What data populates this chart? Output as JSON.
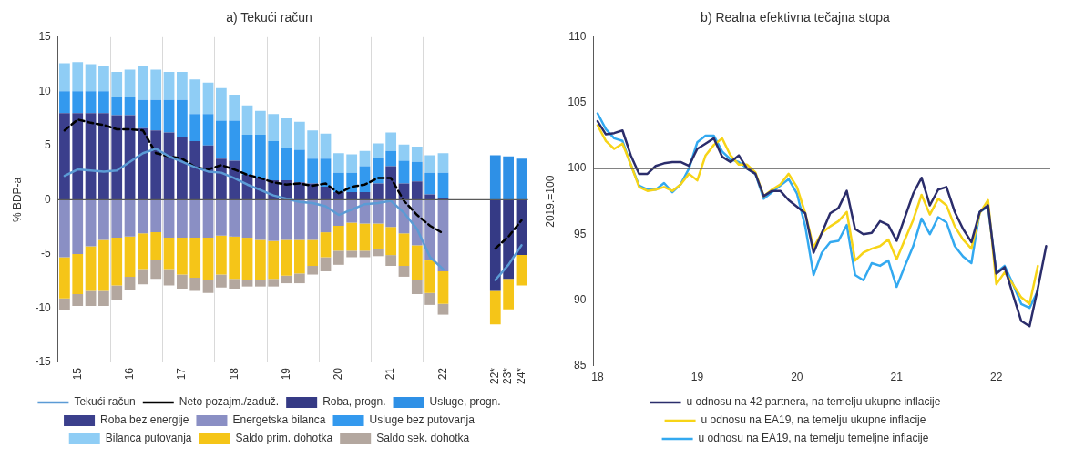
{
  "chart_data": [
    {
      "type": "bar",
      "stacked": true,
      "title": "a) Tekući račun",
      "ylabel": "% BDP-a",
      "categories": [
        null,
        "15",
        null,
        null,
        null,
        "16",
        null,
        null,
        null,
        "17",
        null,
        null,
        null,
        "18",
        null,
        null,
        null,
        "19",
        null,
        null,
        null,
        "20",
        null,
        null,
        null,
        "21",
        null,
        null,
        null,
        "22",
        null,
        null,
        null,
        "22*",
        "23*",
        "24*"
      ],
      "ylim": [
        -15,
        15
      ],
      "yticks": [
        -15,
        -10,
        -5,
        0,
        5,
        10,
        15
      ],
      "grid": "x",
      "legend": "bottom",
      "marker": "none",
      "ref_lines": [
        {
          "axis": "y",
          "value": 0,
          "color": "#595959"
        }
      ],
      "series": [
        {
          "name": "Roba, progn.",
          "color": "#353a85",
          "values": [
            null,
            null,
            null,
            null,
            null,
            null,
            null,
            null,
            null,
            null,
            null,
            null,
            null,
            null,
            null,
            null,
            null,
            null,
            null,
            null,
            null,
            null,
            null,
            null,
            null,
            null,
            null,
            null,
            null,
            null,
            null,
            null,
            null,
            -8.4,
            -7.3,
            -5.1
          ]
        },
        {
          "name": "Usluge, progn.",
          "color": "#2e90e6",
          "values": [
            null,
            null,
            null,
            null,
            null,
            null,
            null,
            null,
            null,
            null,
            null,
            null,
            null,
            null,
            null,
            null,
            null,
            null,
            null,
            null,
            null,
            null,
            null,
            null,
            null,
            null,
            null,
            null,
            null,
            null,
            null,
            null,
            null,
            4.1,
            4.0,
            3.8
          ]
        },
        {
          "name": "Roba bez energije",
          "color": "#3b3f8c",
          "values": [
            8.0,
            8.0,
            8.0,
            8.0,
            7.8,
            7.8,
            6.6,
            6.4,
            6.2,
            5.8,
            5.4,
            5.0,
            3.8,
            3.6,
            2.3,
            2.0,
            1.8,
            1.8,
            1.6,
            1.5,
            1.2,
            0.7,
            0.7,
            0.7,
            1.5,
            3.1,
            1.5,
            1.7,
            0.5,
            0.2,
            null,
            null,
            null,
            null,
            null,
            null
          ]
        },
        {
          "name": "Energetska bilanca",
          "color": "#8a8fc4",
          "values": [
            -5.3,
            -5.0,
            -4.3,
            -3.7,
            -3.5,
            -3.4,
            -3.1,
            -3.0,
            -3.5,
            -3.5,
            -3.5,
            -3.5,
            -3.3,
            -3.4,
            -3.5,
            -3.7,
            -3.8,
            -3.7,
            -3.7,
            -3.7,
            -3.0,
            -2.4,
            -2.1,
            -2.2,
            -2.2,
            -2.5,
            -3.1,
            -4.2,
            -5.6,
            -6.6,
            null,
            null,
            null,
            null,
            null,
            null
          ]
        },
        {
          "name": "Usluge bez putovanja",
          "color": "#3399ee",
          "values": [
            2.0,
            2.0,
            2.0,
            2.0,
            1.7,
            1.7,
            2.6,
            2.8,
            3.0,
            3.4,
            2.5,
            2.9,
            3.5,
            3.7,
            3.7,
            4.0,
            3.6,
            3.0,
            3.0,
            2.3,
            2.6,
            1.8,
            1.8,
            2.4,
            2.4,
            1.4,
            2.1,
            1.8,
            2.0,
            2.3,
            null,
            null,
            null,
            null,
            null,
            null
          ]
        },
        {
          "name": "Bilanca putovanja",
          "color": "#8fcdf5",
          "values": [
            2.6,
            2.7,
            2.5,
            2.3,
            2.3,
            2.5,
            3.1,
            2.8,
            2.6,
            2.6,
            3.2,
            2.9,
            3.0,
            2.4,
            2.7,
            2.2,
            2.5,
            2.7,
            2.6,
            2.6,
            2.3,
            1.8,
            1.7,
            1.4,
            1.3,
            1.7,
            1.5,
            1.4,
            1.6,
            1.8,
            null,
            null,
            null,
            null,
            null,
            null
          ]
        },
        {
          "name": "Saldo prim. dohotka",
          "color": "#f5c518",
          "values": [
            -3.8,
            -3.7,
            -4.1,
            -4.7,
            -4.4,
            -3.7,
            -3.3,
            -2.6,
            -2.9,
            -3.4,
            -3.7,
            -3.9,
            -3.6,
            -3.9,
            -3.9,
            -3.7,
            -3.5,
            -3.3,
            -3.1,
            -2.4,
            -2.3,
            -2.3,
            -2.6,
            -2.5,
            -2.3,
            -2.6,
            -3.0,
            -3.2,
            -3.0,
            -3.0,
            null,
            null,
            null,
            -3.1,
            -2.8,
            -2.8
          ]
        },
        {
          "name": "Saldo sek. dohotka",
          "color": "#b3a79f",
          "values": [
            -1.1,
            -1.1,
            -1.4,
            -1.4,
            -1.3,
            -1.2,
            -1.4,
            -1.7,
            -1.5,
            -1.3,
            -1.2,
            -1.2,
            -1.2,
            -0.9,
            -0.6,
            -0.6,
            -0.7,
            -0.7,
            -0.9,
            -0.8,
            -1.3,
            -1.3,
            -0.6,
            -0.6,
            -0.7,
            -1.0,
            -1.0,
            -1.3,
            -1.1,
            -1.0,
            null,
            null,
            null,
            null,
            null,
            null
          ]
        },
        {
          "name": "Tekući račun",
          "type": "line",
          "color": "#5b9bd5",
          "values": [
            2.2,
            2.8,
            2.7,
            2.6,
            2.7,
            3.5,
            4.3,
            4.7,
            4.0,
            3.5,
            3.0,
            2.6,
            2.5,
            2.0,
            1.4,
            0.9,
            0.4,
            0.1,
            -0.2,
            -0.3,
            -0.6,
            -1.4,
            -0.9,
            -0.4,
            -0.3,
            -0.1,
            -1.2,
            -2.7,
            -5.3,
            -6.4,
            null,
            null,
            null,
            -7.4,
            -6.0,
            -4.2
          ]
        },
        {
          "name": "Neto pozajm./zaduž.",
          "type": "line",
          "line_style": "dashed",
          "color": "#000000",
          "values": [
            6.4,
            7.4,
            7.1,
            6.9,
            6.5,
            6.5,
            6.4,
            4.3,
            4.0,
            3.8,
            3.0,
            2.8,
            3.2,
            2.8,
            2.3,
            2.0,
            1.6,
            1.4,
            1.5,
            1.3,
            1.5,
            0.6,
            1.2,
            1.4,
            2.0,
            2.0,
            -0.1,
            -1.4,
            -2.4,
            -3.1,
            null,
            null,
            null,
            -4.5,
            -3.4,
            -1.9
          ]
        }
      ]
    },
    {
      "type": "line",
      "title": "b) Realna efektivna tečajna stopa",
      "ylabel": "2019.=100",
      "categories": [
        "18",
        null,
        null,
        null,
        null,
        null,
        null,
        null,
        null,
        null,
        null,
        null,
        "19",
        null,
        null,
        null,
        null,
        null,
        null,
        null,
        null,
        null,
        null,
        null,
        "20",
        null,
        null,
        null,
        null,
        null,
        null,
        null,
        null,
        null,
        null,
        null,
        "21",
        null,
        null,
        null,
        null,
        null,
        null,
        null,
        null,
        null,
        null,
        null,
        "22",
        null,
        null,
        null,
        null,
        null,
        null
      ],
      "ylim": [
        85,
        110
      ],
      "yticks": [
        85,
        90,
        95,
        100,
        105,
        110
      ],
      "legend": "bottom",
      "marker": "none",
      "ref_lines": [
        {
          "axis": "y",
          "value": 100,
          "color": "#595959"
        }
      ],
      "series": [
        {
          "name": "u odnosu na 42 partnera, na temelju ukupne inflacije",
          "color": "#2b2d6b",
          "values": [
            103.6,
            102.6,
            102.7,
            102.9,
            101.0,
            99.6,
            99.6,
            100.2,
            100.4,
            100.5,
            100.5,
            100.2,
            101.5,
            101.9,
            102.3,
            100.9,
            100.5,
            101.0,
            100.0,
            99.6,
            97.9,
            98.3,
            98.3,
            97.6,
            97.1,
            96.6,
            93.6,
            95.1,
            96.6,
            97.0,
            98.3,
            95.4,
            95.0,
            95.1,
            96.0,
            95.7,
            94.5,
            96.3,
            98.1,
            99.3,
            97.2,
            98.4,
            98.6,
            96.7,
            95.4,
            94.4,
            96.7,
            97.2,
            92.0,
            92.5,
            90.4,
            88.4,
            88.0,
            90.9,
            94.1
          ]
        },
        {
          "name": "u odnosu na EA19, na temelju ukupne inflacije",
          "color": "#f7d417",
          "values": [
            103.3,
            102.1,
            101.5,
            101.9,
            100.3,
            98.6,
            98.3,
            98.4,
            98.6,
            98.3,
            98.8,
            99.6,
            99.1,
            101.0,
            101.8,
            102.3,
            101.0,
            100.3,
            100.3,
            99.7,
            97.9,
            98.4,
            98.8,
            99.6,
            98.6,
            96.6,
            94.0,
            95.1,
            95.6,
            96.0,
            96.7,
            93.0,
            93.6,
            93.9,
            94.1,
            94.6,
            93.1,
            94.6,
            96.1,
            98.0,
            96.5,
            97.7,
            97.2,
            95.6,
            94.6,
            93.9,
            96.6,
            97.6,
            91.2,
            92.1,
            91.2,
            90.2,
            89.7,
            92.6,
            null
          ]
        },
        {
          "name": "u odnosu na EA19, na temelju temeljne inflacije",
          "color": "#33a9f0",
          "values": [
            104.2,
            103.0,
            102.3,
            102.1,
            100.3,
            98.7,
            98.4,
            98.4,
            98.9,
            98.2,
            98.8,
            100.0,
            102.0,
            102.5,
            102.5,
            101.3,
            100.7,
            100.5,
            100.0,
            99.6,
            97.7,
            98.2,
            98.7,
            99.2,
            98.1,
            95.6,
            91.9,
            93.6,
            94.4,
            94.5,
            95.7,
            91.9,
            91.5,
            92.8,
            92.6,
            93.0,
            91.0,
            92.6,
            94.1,
            96.2,
            95.0,
            96.3,
            95.9,
            94.1,
            93.3,
            92.8,
            96.7,
            97.1,
            92.1,
            92.6,
            91.2,
            89.7,
            89.4,
            90.7,
            null
          ]
        }
      ]
    }
  ]
}
